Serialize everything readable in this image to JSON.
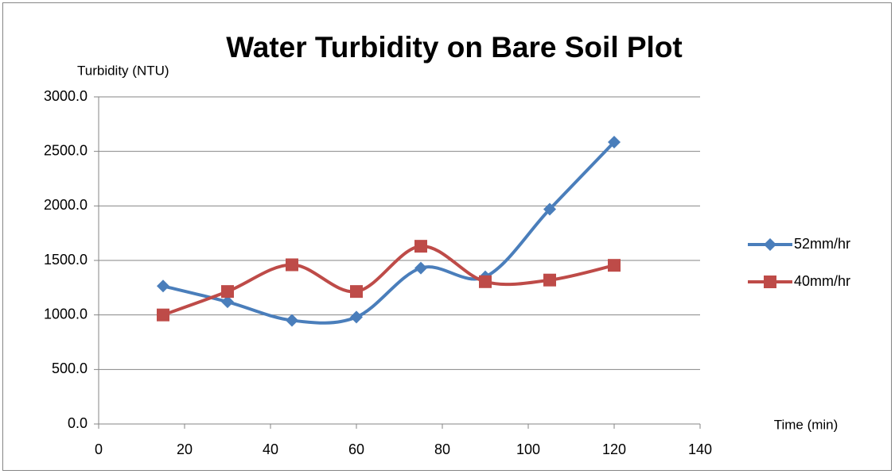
{
  "chart_data": {
    "type": "line",
    "title": "Water Turbidity on Bare Soil Plot",
    "y_label": "Turbidity (NTU)",
    "x_label": "Time (min)",
    "x": [
      15,
      30,
      45,
      60,
      75,
      90,
      105,
      120
    ],
    "series": [
      {
        "name": "52mm/hr",
        "color": "#4a7ebb",
        "marker": "diamond",
        "values": [
          1265,
          1120,
          950,
          980,
          1430,
          1350,
          1970,
          2585
        ]
      },
      {
        "name": "40mm/hr",
        "color": "#be4b48",
        "marker": "square",
        "values": [
          1000,
          1215,
          1460,
          1215,
          1630,
          1305,
          1320,
          1455
        ]
      }
    ],
    "xlim": [
      0,
      140
    ],
    "xticks": [
      0,
      20,
      40,
      60,
      80,
      100,
      120,
      140
    ],
    "ylim": [
      0,
      3000
    ],
    "yticks": [
      {
        "value": 0,
        "label": "0.0"
      },
      {
        "value": 500,
        "label": "500.0"
      },
      {
        "value": 1000,
        "label": "1000.0"
      },
      {
        "value": 1500,
        "label": "1500.0"
      },
      {
        "value": 2000,
        "label": "2000.0"
      },
      {
        "value": 2500,
        "label": "2500.0"
      },
      {
        "value": 3000,
        "label": "3000.0"
      }
    ],
    "grid": true,
    "smooth": true,
    "legend": "right"
  }
}
